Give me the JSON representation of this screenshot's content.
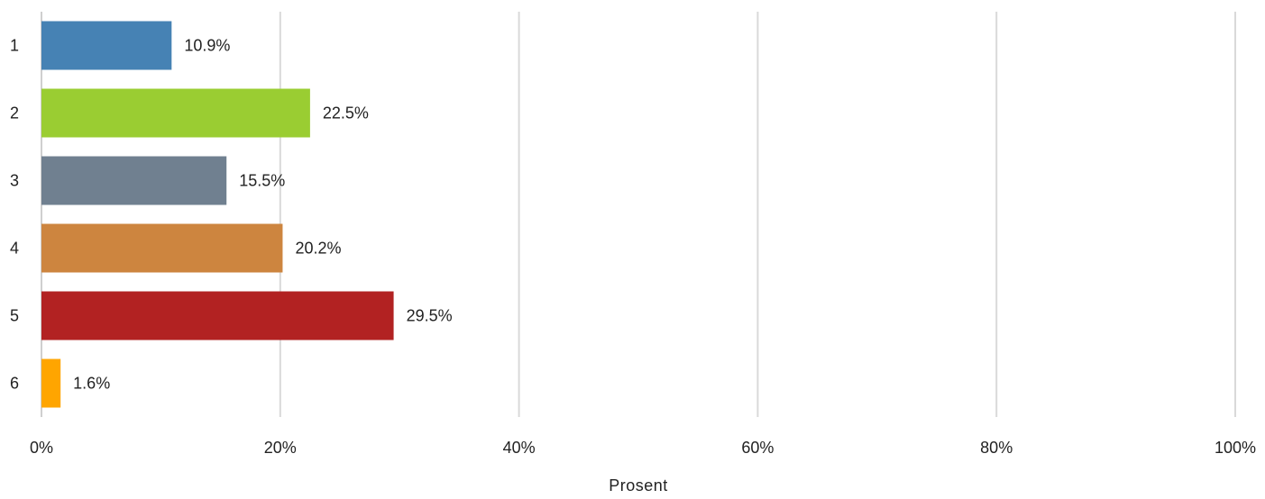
{
  "chart_data": {
    "type": "bar",
    "orientation": "horizontal",
    "categories": [
      "1",
      "2",
      "3",
      "4",
      "5",
      "6"
    ],
    "values": [
      10.9,
      22.5,
      15.5,
      20.2,
      29.5,
      1.6
    ],
    "data_labels": [
      "10.9%",
      "22.5%",
      "15.5%",
      "20.2%",
      "29.5%",
      "1.6%"
    ],
    "colors": [
      "#4682b4",
      "#9acd32",
      "#708090",
      "#cd853f",
      "#b22222",
      "#ffa500"
    ],
    "xlim": [
      0,
      100
    ],
    "x_ticks": [
      0,
      20,
      40,
      60,
      80,
      100
    ],
    "x_tick_labels": [
      "0%",
      "20%",
      "40%",
      "60%",
      "80%",
      "100%"
    ],
    "xlabel": "Prosent",
    "ylabel": "",
    "title": "",
    "grid": true,
    "legend": "none"
  }
}
